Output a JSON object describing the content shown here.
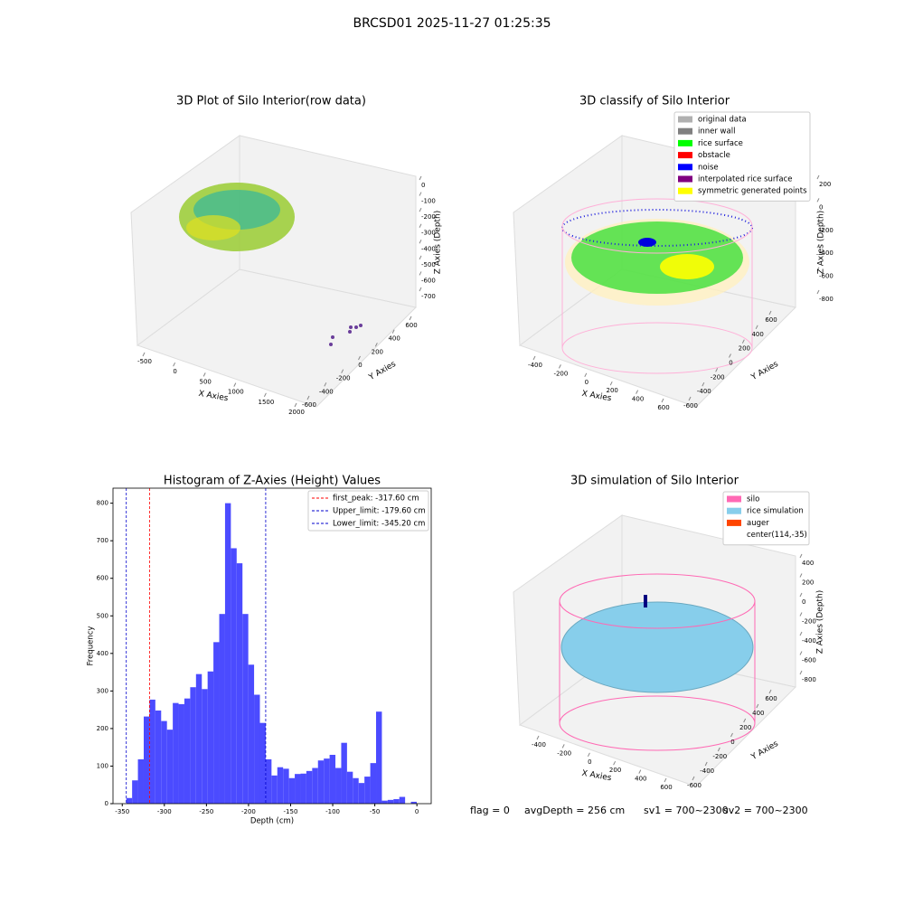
{
  "title": "BRCSD01 2025-11-27 01:25:35",
  "status": [
    "flag = 0",
    "avgDepth = 256 cm",
    "sv1 = 700~2300",
    "sv2 = 700~2300"
  ],
  "chart_data": [
    {
      "type": "scatter3d",
      "title": "3D Plot of Silo Interior(row data)",
      "xlabel": "X Axies",
      "ylabel": "Y Axies",
      "zlabel": "Z Axies (Depth)",
      "xticks": [
        -500,
        0,
        500,
        1000,
        1500,
        2000
      ],
      "yticks": [
        -600,
        -400,
        -200,
        0,
        200,
        400,
        600
      ],
      "zticks": [
        0,
        -100,
        -200,
        -300,
        -400,
        -500,
        -600,
        -700
      ]
    },
    {
      "type": "scatter3d",
      "title": "3D classify of Silo Interior",
      "xlabel": "X Axies",
      "ylabel": "Y Axies",
      "zlabel": "Z Axies (Depth)",
      "xticks": [
        -400,
        -200,
        0,
        200,
        400,
        600
      ],
      "yticks": [
        -600,
        -400,
        -200,
        0,
        200,
        400,
        600
      ],
      "zticks": [
        200,
        0,
        -200,
        -400,
        -600,
        -800
      ],
      "legend": [
        {
          "name": "original data",
          "color": "#b0b0b0"
        },
        {
          "name": "inner wall",
          "color": "#808080"
        },
        {
          "name": "rice surface",
          "color": "#00ff00"
        },
        {
          "name": "obstacle",
          "color": "#ff0000"
        },
        {
          "name": "noise",
          "color": "#0000ff"
        },
        {
          "name": "interpolated rice surface",
          "color": "#800080"
        },
        {
          "name": "symmetric generated points",
          "color": "#ffff00"
        }
      ]
    },
    {
      "type": "histogram",
      "title": "Histogram of Z-Axies (Height) Values",
      "xlabel": "Depth (cm)",
      "ylabel": "Frequency",
      "color": "#4b4bff",
      "bins": [
        -345.2,
        -338.3,
        -331.4,
        -324.5,
        -317.6,
        -310.7,
        -303.8,
        -296.9,
        -290.0,
        -283.1,
        -276.2,
        -269.3,
        -262.4,
        -255.5,
        -248.6,
        -241.7,
        -234.8,
        -227.9,
        -221.0,
        -214.1,
        -207.2,
        -200.3,
        -193.4,
        -186.5,
        -179.6,
        -172.7,
        -165.8,
        -158.9,
        -152.0,
        -145.1,
        -138.2,
        -131.3,
        -124.4,
        -117.5,
        -110.6,
        -103.7,
        -96.8,
        -89.9,
        -83.0,
        -76.1,
        -69.2,
        -62.3,
        -55.4,
        -48.5,
        -41.6,
        -34.7,
        -27.8,
        -20.9,
        -14.0,
        -7.1,
        -0.2
      ],
      "values": [
        15,
        62,
        118,
        232,
        277,
        248,
        220,
        197,
        268,
        265,
        280,
        310,
        345,
        305,
        352,
        430,
        505,
        800,
        680,
        640,
        505,
        370,
        290,
        215,
        118,
        75,
        97,
        93,
        68,
        79,
        80,
        87,
        95,
        115,
        120,
        130,
        95,
        162,
        85,
        68,
        55,
        72,
        108,
        245,
        8,
        10,
        12,
        18,
        0,
        5
      ],
      "xlim": [
        -361,
        17
      ],
      "ylim": [
        0,
        840
      ],
      "xticks": [
        -350,
        -300,
        -250,
        -200,
        -150,
        -100,
        -50,
        0
      ],
      "yticks": [
        0,
        100,
        200,
        300,
        400,
        500,
        600,
        700,
        800
      ],
      "lines": [
        {
          "name": "first_peak: -317.60 cm",
          "value": -317.6,
          "color": "#ff0000"
        },
        {
          "name": "Upper_limit: -179.60 cm",
          "value": -179.6,
          "color": "#0000cc"
        },
        {
          "name": "Lower_limit: -345.20 cm",
          "value": -345.2,
          "color": "#0000cc"
        }
      ]
    },
    {
      "type": "surface3d",
      "title": "3D simulation of Silo Interior",
      "xlabel": "X Axies",
      "ylabel": "Y Axies",
      "zlabel": "Z Axies (Depth)",
      "xticks": [
        -400,
        -200,
        0,
        200,
        400,
        600
      ],
      "yticks": [
        -600,
        -400,
        -200,
        0,
        200,
        400,
        600
      ],
      "zticks": [
        400,
        200,
        0,
        -200,
        -400,
        -600,
        -800
      ],
      "legend": [
        {
          "name": "silo",
          "color": "#ff69b4"
        },
        {
          "name": "rice simulation",
          "color": "#87ceeb"
        },
        {
          "name": "auger",
          "color": "#ff4500"
        },
        {
          "name": "center(114,-35)",
          "color": null
        }
      ]
    }
  ]
}
